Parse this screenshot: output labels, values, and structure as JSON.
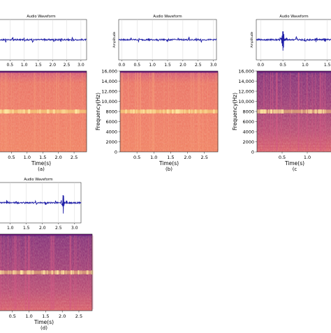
{
  "colors": {
    "waveform_line": "#1f1fa8",
    "spec_light_base": "#ea6b5b",
    "spec_dark_base": "#85226f",
    "spec_band": "#f7d27a",
    "spec_top_edge": "#6b1a7a"
  },
  "chart_data": [
    {
      "id": "a",
      "type": "line",
      "kind": "waveform",
      "title": "Audio Waveform",
      "ylabel": "",
      "x_ticks": [
        "0.5",
        "1.0",
        "1.5",
        "2.0",
        "2.5",
        "3.0"
      ],
      "x_tick_values": [
        0.5,
        1.0,
        1.5,
        2.0,
        2.5,
        3.0
      ],
      "xlim": [
        0,
        3.2
      ],
      "ylim": [
        -1,
        1
      ],
      "spikes": [
        0.35,
        0.6,
        1.0,
        1.3,
        1.7,
        2.05,
        2.3,
        2.55,
        2.7
      ],
      "grid": true
    },
    {
      "id": "a",
      "type": "heatmap",
      "kind": "spectrogram",
      "xlabel": "Time(s)",
      "ylabel": "",
      "x_ticks": [
        "0.5",
        "1.0",
        "1.5",
        "2.0",
        "2.5"
      ],
      "x_tick_values": [
        0.5,
        1.0,
        1.5,
        2.0,
        2.5
      ],
      "xlim": [
        0,
        2.9
      ],
      "ylim": [
        0,
        16000
      ],
      "y_ticks": [],
      "band_hz": 8000,
      "tone": "light",
      "caption": "(a)"
    },
    {
      "id": "b",
      "type": "line",
      "kind": "waveform",
      "title": "Audio Waveform",
      "ylabel": "Amplitude",
      "x_ticks": [
        "0.0",
        "0.5",
        "1.0",
        "1.5",
        "2.0",
        "2.5",
        "3.0"
      ],
      "x_tick_values": [
        0.0,
        0.5,
        1.0,
        1.5,
        2.0,
        2.5,
        3.0
      ],
      "xlim": [
        -0.1,
        3.1
      ],
      "ylim": [
        -1,
        1
      ],
      "spikes": [
        0.3,
        0.55,
        0.9,
        1.2,
        1.5,
        1.85,
        2.2,
        2.45,
        2.6
      ],
      "grid": true
    },
    {
      "id": "b",
      "type": "heatmap",
      "kind": "spectrogram",
      "xlabel": "Time(s)",
      "ylabel": "Frequency(Hz)",
      "x_ticks": [
        "0.5",
        "1.0",
        "1.5",
        "2.0",
        "2.5"
      ],
      "x_tick_values": [
        0.5,
        1.0,
        1.5,
        2.0,
        2.5
      ],
      "xlim": [
        0,
        2.9
      ],
      "ylim": [
        0,
        16000
      ],
      "y_ticks": [
        "0",
        "2000",
        "4000",
        "6000",
        "8000",
        "10,000",
        "12,000",
        "14,000",
        "16,000"
      ],
      "y_tick_values": [
        0,
        2000,
        4000,
        6000,
        8000,
        10000,
        12000,
        14000,
        16000
      ],
      "band_hz": 8000,
      "tone": "light",
      "caption": "(b)"
    },
    {
      "id": "c",
      "type": "line",
      "kind": "waveform",
      "title": "Audio Waveform",
      "ylabel": "Amplitude",
      "x_ticks": [
        "0.0",
        "0.5",
        "1.0",
        "1.5"
      ],
      "x_tick_values": [
        0.0,
        0.5,
        1.0,
        1.5
      ],
      "xlim": [
        -0.1,
        1.6
      ],
      "ylim": [
        -1,
        1
      ],
      "spikes": [
        0.45,
        0.52,
        0.58,
        0.8,
        1.0,
        1.25,
        1.45
      ],
      "big_spike": 0.5,
      "grid": true
    },
    {
      "id": "c",
      "type": "heatmap",
      "kind": "spectrogram",
      "xlabel": "Time(s)",
      "ylabel": "Frequency(Hz)",
      "x_ticks": [
        "0.5",
        "1.0"
      ],
      "x_tick_values": [
        0.5,
        1.0
      ],
      "xlim": [
        0,
        1.5
      ],
      "ylim": [
        0,
        16000
      ],
      "y_ticks": [
        "0",
        "2000",
        "4000",
        "6000",
        "8000",
        "10,000",
        "12,000",
        "14,000",
        "16,000"
      ],
      "y_tick_values": [
        0,
        2000,
        4000,
        6000,
        8000,
        10000,
        12000,
        14000,
        16000
      ],
      "band_hz": 8000,
      "tone": "dark",
      "caption": "(c"
    },
    {
      "id": "d",
      "type": "line",
      "kind": "waveform",
      "title": "Audio Waveform",
      "ylabel": "",
      "x_ticks": [
        "1.0",
        "1.5",
        "2.0",
        "2.5",
        "3.0"
      ],
      "x_tick_values": [
        1.0,
        1.5,
        2.0,
        2.5,
        3.0
      ],
      "xlim": [
        0.55,
        3.2
      ],
      "ylim": [
        -1,
        1
      ],
      "spikes": [
        0.9,
        1.2,
        1.45,
        1.8,
        2.1,
        2.4,
        2.6,
        2.75,
        2.85
      ],
      "big_spike": 2.65,
      "grid": true
    },
    {
      "id": "d",
      "type": "heatmap",
      "kind": "spectrogram",
      "xlabel": "Time(s)",
      "ylabel": "",
      "x_ticks": [
        "0.5",
        "1.0",
        "1.5",
        "2.0",
        "2.5"
      ],
      "x_tick_values": [
        0.5,
        1.0,
        1.5,
        2.0,
        2.5
      ],
      "xlim": [
        0,
        2.9
      ],
      "ylim": [
        0,
        16000
      ],
      "y_ticks": [],
      "band_hz": 8000,
      "tone": "dark",
      "caption": "(d)"
    }
  ]
}
